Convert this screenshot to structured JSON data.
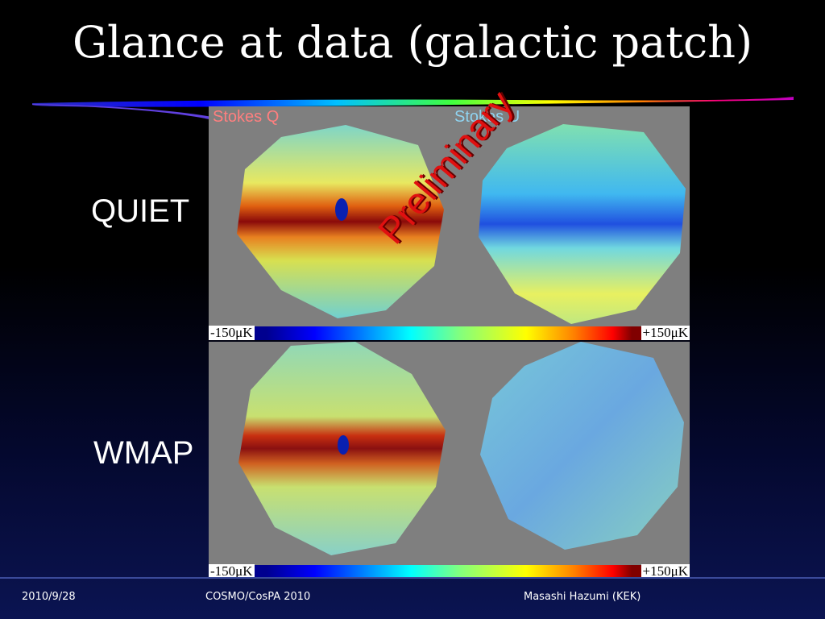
{
  "title": "Glance at data (galactic patch)",
  "row_labels": {
    "quiet": "QUIET",
    "wmap": "WMAP"
  },
  "panel_labels": {
    "q": "Stokes Q",
    "u": "Stokes U"
  },
  "colorbar": {
    "min": "-150μK",
    "max": "+150μK"
  },
  "watermark": "Preliminary",
  "footer": {
    "date": "2010/9/28",
    "conference": "COSMO/CosPA 2010",
    "author": "Masashi Hazumi (KEK)"
  },
  "colors": {
    "background_top": "#000000",
    "background_bottom": "#0b1452",
    "map_background": "#7f7f7f",
    "watermark": "#e01010",
    "stokes_q_label": "#ff7f7f",
    "stokes_u_label": "#8fd3f0"
  }
}
